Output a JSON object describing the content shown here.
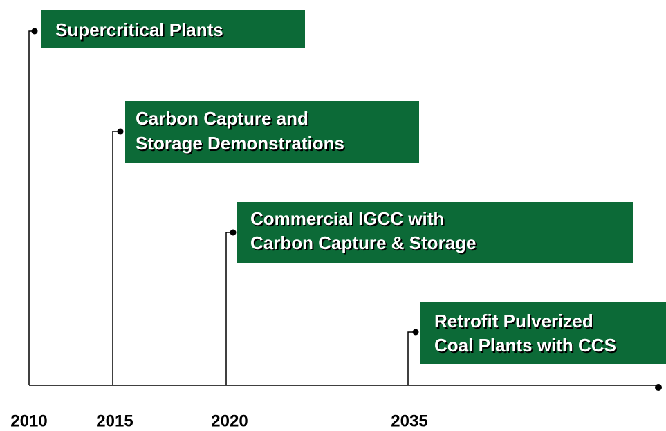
{
  "milestones": [
    {
      "year": "2010",
      "lines": [
        "Supercritical Plants"
      ]
    },
    {
      "year": "2015",
      "lines": [
        "Carbon Capture and",
        "Storage Demonstrations"
      ]
    },
    {
      "year": "2020",
      "lines": [
        "Commercial IGCC with",
        "Carbon Capture & Storage"
      ]
    },
    {
      "year": "2035",
      "lines": [
        "Retrofit Pulverized",
        "Coal Plants with CCS"
      ]
    }
  ]
}
